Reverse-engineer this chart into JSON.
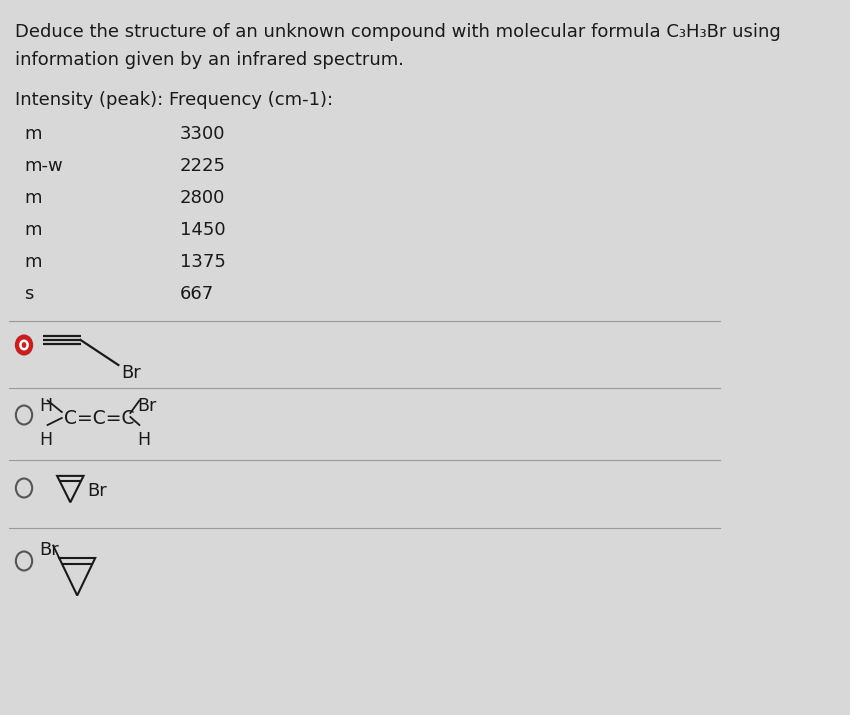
{
  "title_line1": "Deduce the structure of an unknown compound with molecular formula C₃H₃Br using",
  "title_line2": "information given by an infrared spectrum.",
  "table_header": "Intensity (peak): Frequency (cm-1):",
  "table_data": [
    [
      "m",
      "3300"
    ],
    [
      "m-w",
      "2225"
    ],
    [
      "m",
      "2800"
    ],
    [
      "m",
      "1450"
    ],
    [
      "m",
      "1375"
    ],
    [
      "s",
      "667"
    ]
  ],
  "bg_color": "#d8d8d8",
  "text_color": "#1a1a1a",
  "font_size_title": 13,
  "font_size_table": 13,
  "font_size_options": 13
}
